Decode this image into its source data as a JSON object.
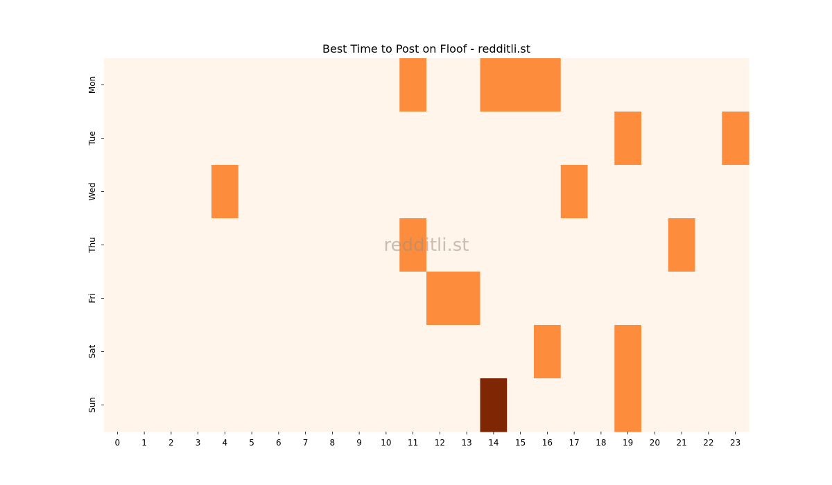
{
  "chart_data": {
    "type": "heatmap",
    "title": "Best Time to Post on Floof - redditli.st",
    "watermark": "redditli.st",
    "xlabel": "",
    "ylabel": "",
    "x": [
      "0",
      "1",
      "2",
      "3",
      "4",
      "5",
      "6",
      "7",
      "8",
      "9",
      "10",
      "11",
      "12",
      "13",
      "14",
      "15",
      "16",
      "17",
      "18",
      "19",
      "20",
      "21",
      "22",
      "23"
    ],
    "y": [
      "Mon",
      "Tue",
      "Wed",
      "Thu",
      "Fri",
      "Sat",
      "Sun"
    ],
    "values": [
      [
        0,
        0,
        0,
        0,
        0,
        0,
        0,
        0,
        0,
        0,
        0,
        1,
        0,
        0,
        1,
        1,
        1,
        0,
        0,
        0,
        0,
        0,
        0,
        0
      ],
      [
        0,
        0,
        0,
        0,
        0,
        0,
        0,
        0,
        0,
        0,
        0,
        0,
        0,
        0,
        0,
        0,
        0,
        0,
        0,
        1,
        0,
        0,
        0,
        1
      ],
      [
        0,
        0,
        0,
        0,
        1,
        0,
        0,
        0,
        0,
        0,
        0,
        0,
        0,
        0,
        0,
        0,
        0,
        1,
        0,
        0,
        0,
        0,
        0,
        0
      ],
      [
        0,
        0,
        0,
        0,
        0,
        0,
        0,
        0,
        0,
        0,
        0,
        1,
        0,
        0,
        0,
        0,
        0,
        0,
        0,
        0,
        0,
        1,
        0,
        0
      ],
      [
        0,
        0,
        0,
        0,
        0,
        0,
        0,
        0,
        0,
        0,
        0,
        0,
        1,
        1,
        0,
        0,
        0,
        0,
        0,
        0,
        0,
        0,
        0,
        0
      ],
      [
        0,
        0,
        0,
        0,
        0,
        0,
        0,
        0,
        0,
        0,
        0,
        0,
        0,
        0,
        0,
        0,
        1,
        0,
        0,
        1,
        0,
        0,
        0,
        0
      ],
      [
        0,
        0,
        0,
        0,
        0,
        0,
        0,
        0,
        0,
        0,
        0,
        0,
        0,
        0,
        2,
        0,
        0,
        0,
        0,
        1,
        0,
        0,
        0,
        0
      ]
    ],
    "colormap": {
      "0": "#fff5eb",
      "1": "#fd8d3c",
      "2": "#7f2704"
    },
    "grid": false,
    "legend": "none"
  }
}
